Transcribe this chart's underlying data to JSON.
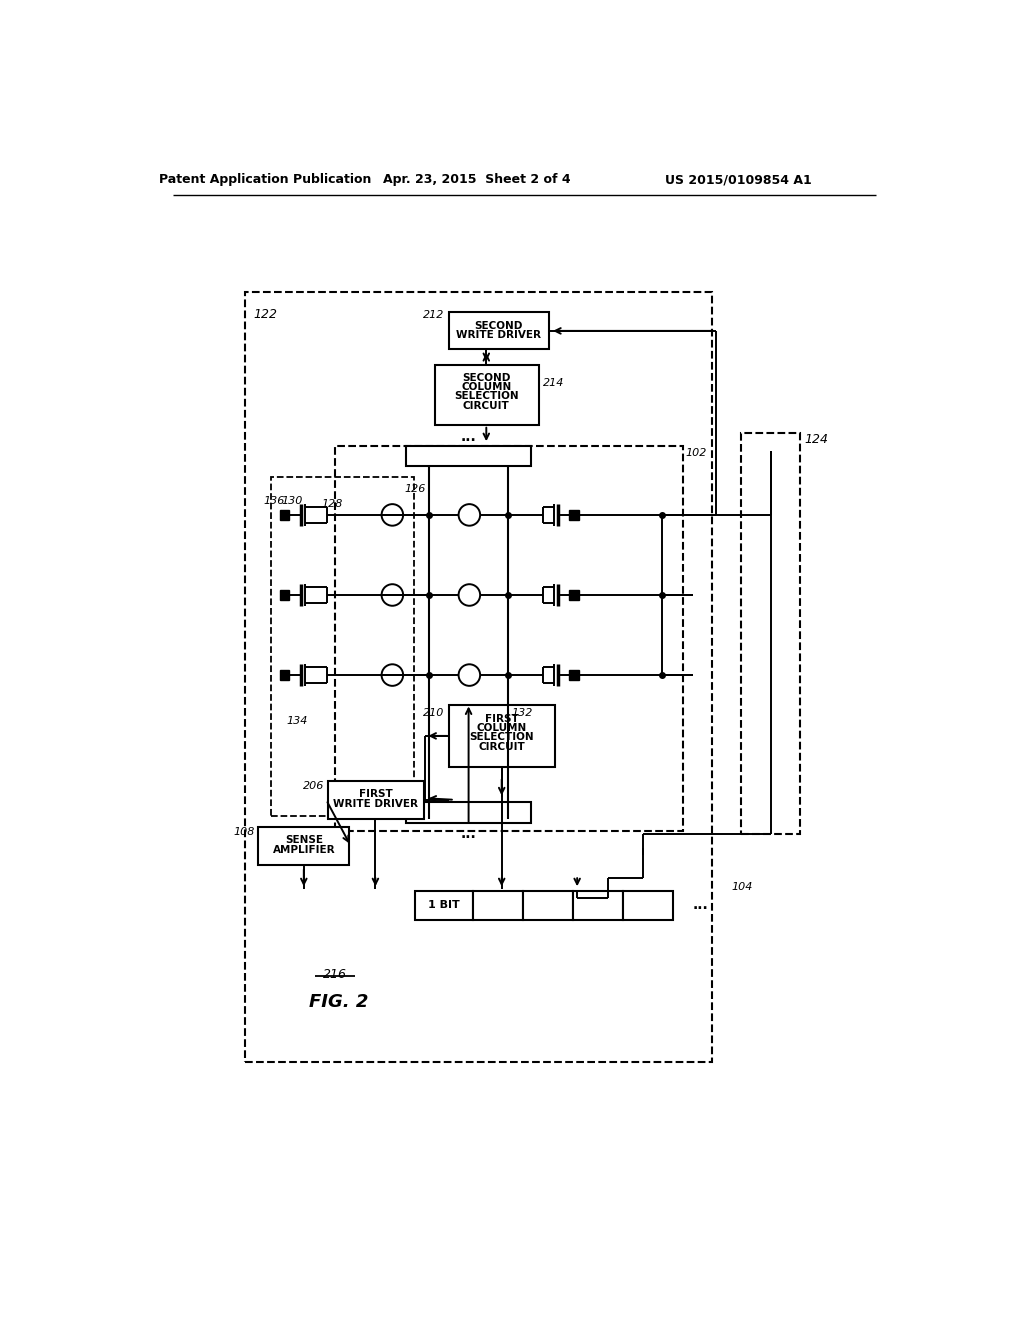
{
  "bg_color": "#ffffff",
  "header1": "Patent Application Publication",
  "header2": "Apr. 23, 2015  Sheet 2 of 4",
  "header3": "US 2015/0109854 A1",
  "fig_caption": "FIG. 2",
  "fig_num_label": "216"
}
